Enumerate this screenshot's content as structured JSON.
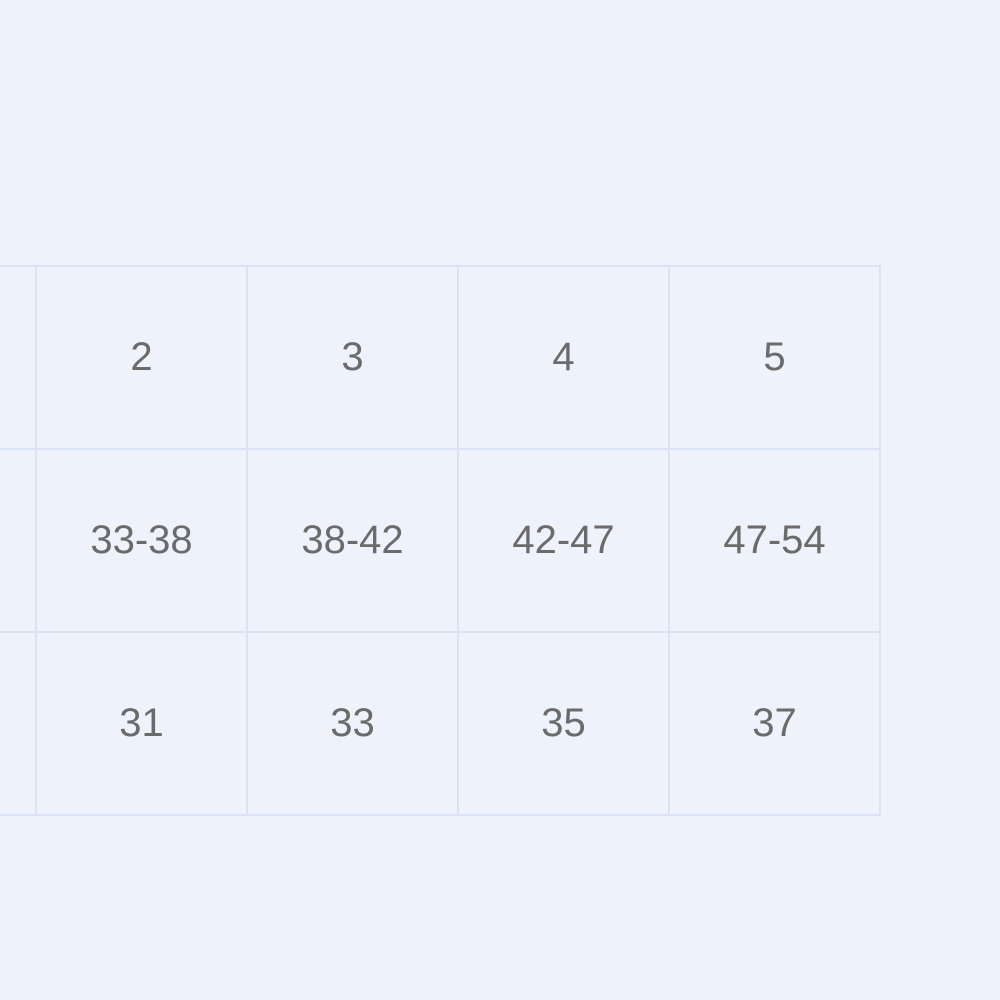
{
  "table": {
    "rows": [
      [
        "",
        "2",
        "3",
        "4",
        "5"
      ],
      [
        "",
        "33-38",
        "38-42",
        "42-47",
        "47-54"
      ],
      [
        "",
        "31",
        "33",
        "35",
        "37"
      ]
    ]
  },
  "colors": {
    "background": "#eef2fb",
    "grid": "#d9e3f3",
    "text": "#6b6b6b"
  }
}
